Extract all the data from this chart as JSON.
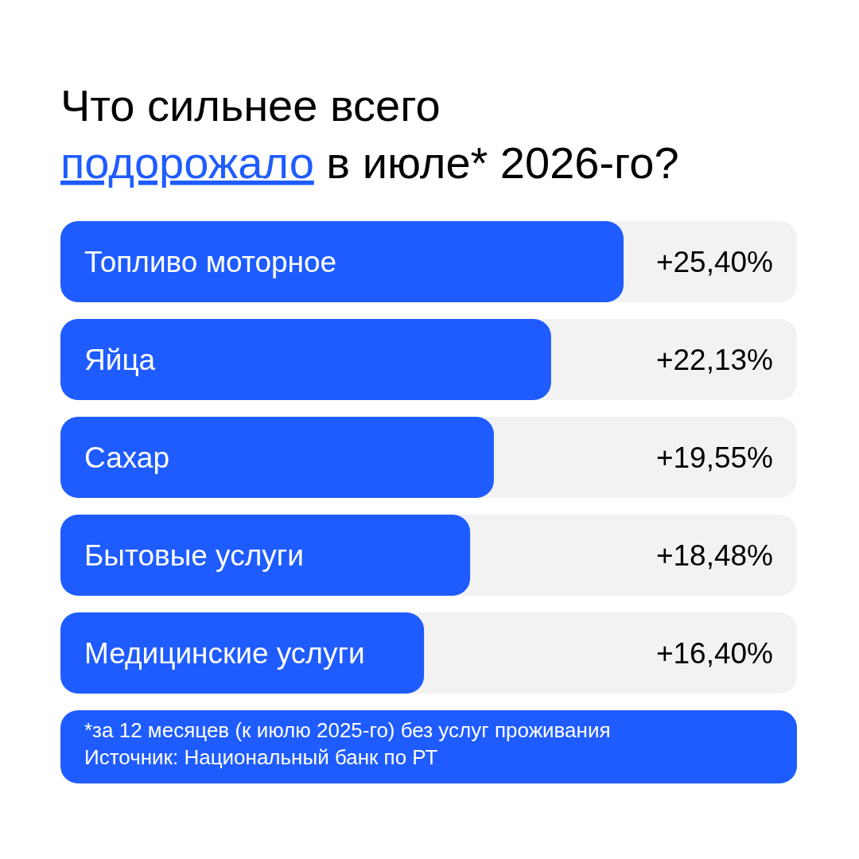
{
  "chart_data": {
    "type": "bar",
    "orientation": "horizontal",
    "title": "Что сильнее всего подорожало в июле* 2026-го?",
    "categories": [
      "Топливо моторное",
      "Яйца",
      "Сахар",
      "Бытовые услуги",
      "Медицинские услуги"
    ],
    "values": [
      25.4,
      22.13,
      19.55,
      18.48,
      16.4
    ],
    "value_labels": [
      "+25,40%",
      "+22,13%",
      "+19,55%",
      "+18,48%",
      "+16,40%"
    ],
    "color": "#1f5cff",
    "annotations": [
      "*за 12 месяцев (к июлю 2025-го) без услуг проживания",
      "Источник: Национальный банк по РТ"
    ]
  }
}
